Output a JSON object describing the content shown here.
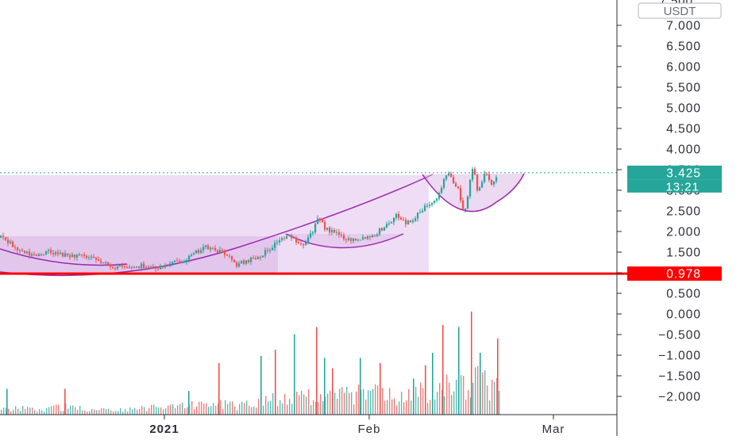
{
  "currency": "USDT",
  "chart_data": {
    "type": "candlestick",
    "price_axis": {
      "ticks": [
        "7.000",
        "6.500",
        "6.000",
        "5.500",
        "5.000",
        "4.500",
        "4.000",
        "3.500",
        "3.000",
        "2.500",
        "2.000",
        "1.500",
        "1.000",
        "0.500",
        "0.000",
        "−0.500",
        "−1.000",
        "−1.500",
        "−2.000"
      ],
      "partial_top_label": "7.500",
      "ylim": [
        -2.5,
        7.6
      ]
    },
    "time_axis": {
      "ticks": [
        "2021",
        "Feb",
        "Mar"
      ]
    },
    "last_price": {
      "value": 3.425,
      "label": "3.425",
      "countdown": "13:21",
      "color": "#26a69a"
    },
    "support_level": {
      "value": 0.978,
      "label": "0.978",
      "color": "#ff0000"
    },
    "colors": {
      "up": "#26a69a",
      "down": "#ef5350",
      "pattern_fill": "#d9b3e6",
      "pattern_line": "#9c27b0"
    },
    "price_path": [
      [
        0,
        1.85
      ],
      [
        12,
        1.7
      ],
      [
        25,
        1.5
      ],
      [
        40,
        1.42
      ],
      [
        60,
        1.5
      ],
      [
        80,
        1.42
      ],
      [
        100,
        1.4
      ],
      [
        120,
        1.3
      ],
      [
        140,
        1.15
      ],
      [
        160,
        1.12
      ],
      [
        180,
        1.18
      ],
      [
        200,
        1.12
      ],
      [
        220,
        1.25
      ],
      [
        240,
        1.4
      ],
      [
        255,
        1.62
      ],
      [
        270,
        1.55
      ],
      [
        285,
        1.45
      ],
      [
        295,
        1.18
      ],
      [
        310,
        1.3
      ],
      [
        325,
        1.4
      ],
      [
        340,
        1.6
      ],
      [
        350,
        1.8
      ],
      [
        365,
        1.88
      ],
      [
        380,
        1.7
      ],
      [
        392,
        2.0
      ],
      [
        400,
        2.3
      ],
      [
        410,
        2.05
      ],
      [
        425,
        1.92
      ],
      [
        440,
        1.8
      ],
      [
        455,
        1.85
      ],
      [
        470,
        1.92
      ],
      [
        485,
        2.15
      ],
      [
        500,
        2.4
      ],
      [
        512,
        2.2
      ],
      [
        525,
        2.4
      ],
      [
        540,
        2.7
      ],
      [
        552,
        2.9
      ],
      [
        560,
        3.4
      ],
      [
        568,
        3.3
      ],
      [
        576,
        3.0
      ],
      [
        583,
        2.4
      ],
      [
        590,
        3.1
      ],
      [
        595,
        3.6
      ],
      [
        600,
        3.0
      ],
      [
        610,
        3.4
      ],
      [
        618,
        3.1
      ],
      [
        625,
        3.4
      ]
    ],
    "volume_path": [
      [
        0,
        0.05
      ],
      [
        20,
        0.08
      ],
      [
        40,
        0.06
      ],
      [
        60,
        0.07
      ],
      [
        80,
        0.09
      ],
      [
        100,
        0.07
      ],
      [
        120,
        0.06
      ],
      [
        140,
        0.05
      ],
      [
        160,
        0.06
      ],
      [
        180,
        0.07
      ],
      [
        200,
        0.08
      ],
      [
        220,
        0.1
      ],
      [
        240,
        0.12
      ],
      [
        260,
        0.1
      ],
      [
        280,
        0.12
      ],
      [
        300,
        0.1
      ],
      [
        320,
        0.14
      ],
      [
        340,
        0.18
      ],
      [
        360,
        0.2
      ],
      [
        380,
        0.18
      ],
      [
        400,
        0.22
      ],
      [
        420,
        0.2
      ],
      [
        440,
        0.22
      ],
      [
        460,
        0.25
      ],
      [
        480,
        0.22
      ],
      [
        500,
        0.2
      ],
      [
        520,
        0.22
      ],
      [
        540,
        0.28
      ],
      [
        560,
        0.35
      ],
      [
        580,
        0.3
      ],
      [
        600,
        0.4
      ],
      [
        625,
        0.3
      ]
    ],
    "volume_spikes": [
      [
        8,
        0.25
      ],
      [
        81,
        0.25
      ],
      [
        237,
        0.23
      ],
      [
        275,
        0.5
      ],
      [
        328,
        0.57
      ],
      [
        346,
        0.63
      ],
      [
        370,
        0.78
      ],
      [
        398,
        0.85
      ],
      [
        408,
        0.55
      ],
      [
        418,
        0.45
      ],
      [
        453,
        0.55
      ],
      [
        478,
        0.5
      ],
      [
        520,
        0.35
      ],
      [
        535,
        0.48
      ],
      [
        544,
        0.6
      ],
      [
        557,
        0.87
      ],
      [
        577,
        0.85
      ],
      [
        593,
        1.0
      ],
      [
        604,
        0.6
      ],
      [
        626,
        0.74
      ]
    ]
  }
}
